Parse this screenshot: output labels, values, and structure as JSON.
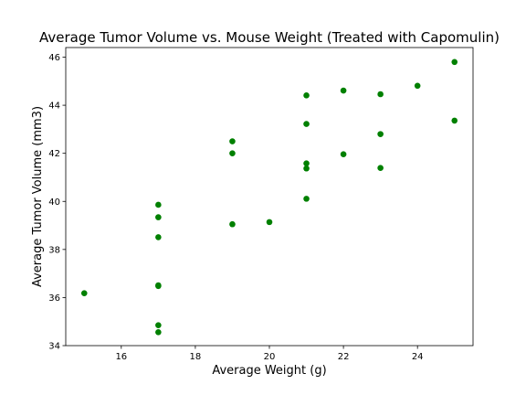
{
  "chart_data": {
    "type": "scatter",
    "title": "Average Tumor Volume vs. Mouse Weight (Treated with Capomulin)",
    "xlabel": "Average Weight (g)",
    "ylabel": "Average Tumor Volume (mm3)",
    "xlim": [
      14.5,
      25.5
    ],
    "ylim": [
      34,
      46.4
    ],
    "xticks": [
      16,
      18,
      20,
      22,
      24
    ],
    "yticks": [
      34,
      36,
      38,
      40,
      42,
      44,
      46
    ],
    "grid": false,
    "marker_color": "#008000",
    "points": [
      {
        "x": 15,
        "y": 36.18
      },
      {
        "x": 17,
        "y": 39.86
      },
      {
        "x": 17,
        "y": 39.34
      },
      {
        "x": 17,
        "y": 38.51
      },
      {
        "x": 17,
        "y": 36.51
      },
      {
        "x": 17,
        "y": 36.48
      },
      {
        "x": 17,
        "y": 34.85
      },
      {
        "x": 17,
        "y": 34.56
      },
      {
        "x": 19,
        "y": 42.5
      },
      {
        "x": 19,
        "y": 42.0
      },
      {
        "x": 19,
        "y": 39.05
      },
      {
        "x": 20,
        "y": 39.14
      },
      {
        "x": 21,
        "y": 44.41
      },
      {
        "x": 21,
        "y": 43.22
      },
      {
        "x": 21,
        "y": 41.58
      },
      {
        "x": 21,
        "y": 41.37
      },
      {
        "x": 21,
        "y": 40.11
      },
      {
        "x": 22,
        "y": 44.61
      },
      {
        "x": 22,
        "y": 41.96
      },
      {
        "x": 23,
        "y": 44.46
      },
      {
        "x": 23,
        "y": 42.8
      },
      {
        "x": 23,
        "y": 41.39
      },
      {
        "x": 24,
        "y": 44.81
      },
      {
        "x": 25,
        "y": 45.8
      },
      {
        "x": 25,
        "y": 43.36
      }
    ]
  }
}
